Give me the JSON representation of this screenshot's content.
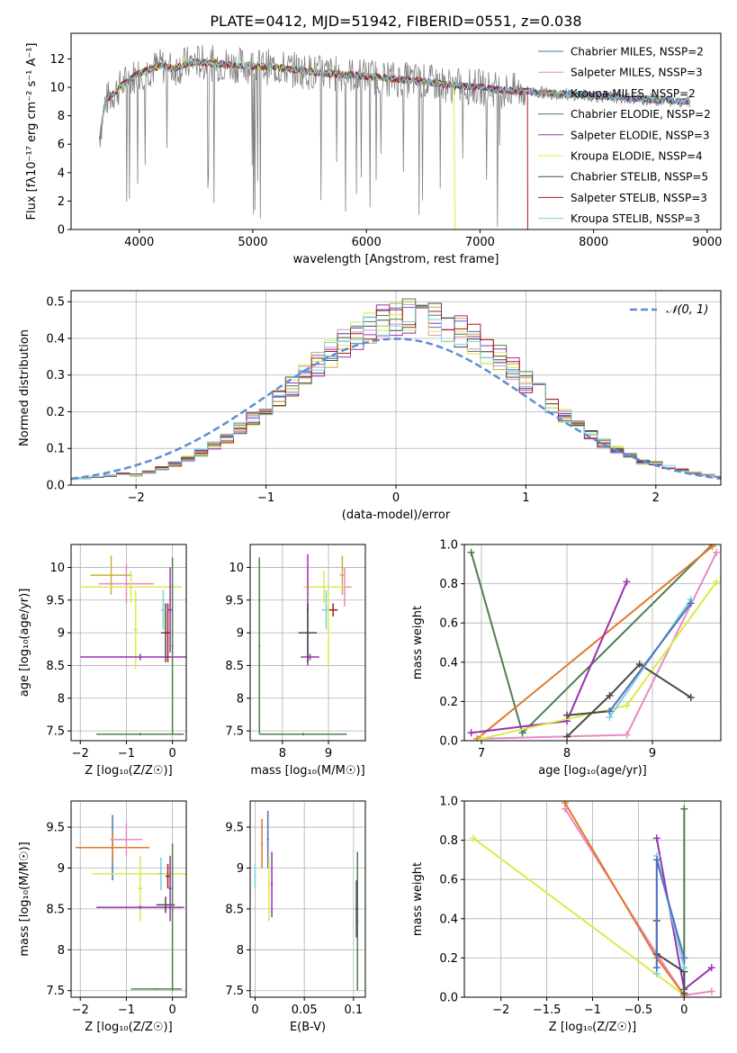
{
  "title": "PLATE=0412, MJD=51942, FIBERID=0551, z=0.038",
  "colors": {
    "chabrier_miles": "#4f6fc0",
    "salpeter_miles": "#e88ac4",
    "kroupa_miles": "#c8b03a",
    "chabrier_elodie": "#4f7f4f",
    "salpeter_elodie": "#9b2fb0",
    "kroupa_elodie": "#d8ec4a",
    "chabrier_stelib": "#4a4a4a",
    "salpeter_stelib": "#b01818",
    "kroupa_stelib": "#7ed0dc",
    "data": "#808080",
    "orange": "#e07a2a",
    "normal": "#5b8ed8"
  },
  "chart_data": [
    {
      "id": "spectrum",
      "type": "line",
      "xlabel": "wavelength [Angstrom, rest frame]",
      "ylabel": "Flux [fλ10⁻¹⁷ erg cm⁻² s⁻¹ A⁻¹]",
      "xlim": [
        3400,
        9120
      ],
      "ylim": [
        0,
        13.8
      ],
      "xticks": [
        4000,
        5000,
        6000,
        7000,
        8000,
        9000
      ],
      "yticks": [
        0,
        2,
        4,
        6,
        8,
        10,
        12
      ],
      "legend_position": "top-right",
      "legend": [
        "Chabrier MILES, NSSP=2",
        "Salpeter MILES, NSSP=3",
        "Kroupa MILES, NSSP=2",
        "Chabrier ELODIE, NSSP=2",
        "Salpeter ELODIE, NSSP=3",
        "Kroupa ELODIE, NSSP=4",
        "Chabrier STELIB, NSSP=5",
        "Salpeter STELIB, NSSP=3",
        "Kroupa STELIB, NSSP=3"
      ],
      "data_x": [
        3650,
        3700,
        3800,
        3900,
        4000,
        4100,
        4200,
        4300,
        4400,
        4500,
        4600,
        4800,
        5000,
        5200,
        5400,
        5600,
        5800,
        6000,
        6200,
        6400,
        6600,
        6800,
        7000,
        7200,
        7400,
        7600,
        7800,
        8000,
        8200,
        8400,
        8600,
        8800
      ],
      "data_y": [
        6.5,
        9.0,
        9.8,
        10.5,
        11.0,
        11.3,
        11.5,
        11.3,
        11.6,
        11.8,
        11.7,
        11.6,
        11.5,
        11.4,
        11.2,
        11.0,
        10.9,
        10.8,
        10.6,
        10.5,
        10.3,
        10.1,
        10.0,
        9.8,
        9.7,
        9.6,
        9.5,
        9.4,
        9.3,
        9.2,
        9.1,
        9.0
      ],
      "kroupa_elodie_cutoff": 6780,
      "salpeter_stelib_cutoff": 7420
    },
    {
      "id": "residuals",
      "type": "line",
      "xlabel": "(data-model)/error",
      "ylabel": "Normed distribution",
      "xlim": [
        -2.5,
        2.5
      ],
      "ylim": [
        0,
        0.53
      ],
      "xticks": [
        -2,
        -1,
        0,
        1,
        2
      ],
      "yticks": [
        0.0,
        0.1,
        0.2,
        0.3,
        0.4,
        0.5
      ],
      "legend": [
        "𝒩(0, 1)"
      ],
      "legend_position": "top-right"
    },
    {
      "id": "age_vs_Z",
      "type": "scatter",
      "xlabel": "Z [log₁₀(Z/Z☉)]",
      "ylabel": "age  [log₁₀(age/yr)]",
      "xlim": [
        -2.2,
        0.3
      ],
      "ylim": [
        7.35,
        10.35
      ],
      "xticks": [
        -2,
        -1,
        0
      ],
      "yticks": [
        7.5,
        8.0,
        8.5,
        9.0,
        9.5,
        10.0
      ],
      "points": [
        {
          "series": "kroupa_miles",
          "x": -1.33,
          "y": 9.88,
          "xerr": 0.45,
          "yerr": 0.3
        },
        {
          "series": "salpeter_miles",
          "x": -1.0,
          "y": 9.75,
          "xerr": 0.6,
          "yerr": 0.3
        },
        {
          "series": "kroupa_elodie",
          "x": -0.9,
          "y": 9.7,
          "xerr": 1.1,
          "yerr": 0.25
        },
        {
          "series": "kroupa_elodie",
          "x": -0.8,
          "y": 9.05,
          "xerr": 0.05,
          "yerr": 0.6
        },
        {
          "series": "salpeter_elodie",
          "x": -0.7,
          "y": 8.63,
          "xerr": 1.3,
          "yerr": 0.05
        },
        {
          "series": "chabrier_stelib",
          "x": -0.15,
          "y": 9.0,
          "xerr": 0.1,
          "yerr": 0.45
        },
        {
          "series": "kroupa_stelib",
          "x": -0.2,
          "y": 9.35,
          "xerr": 0.05,
          "yerr": 0.3
        },
        {
          "series": "salpeter_stelib",
          "x": -0.1,
          "y": 9.0,
          "xerr": 0.05,
          "yerr": 0.45
        },
        {
          "series": "salpeter_elodie",
          "x": -0.05,
          "y": 9.35,
          "xerr": 0.05,
          "yerr": 0.65
        },
        {
          "series": "chabrier_elodie",
          "x": -0.7,
          "y": 7.45,
          "xerr": 0.95,
          "yerr": 0.02
        },
        {
          "series": "chabrier_elodie",
          "x": 0.0,
          "y": 8.8,
          "xerr": 0.02,
          "yerr": 1.35
        }
      ]
    },
    {
      "id": "age_vs_mass",
      "type": "scatter",
      "xlabel": "mass [log₁₀(M/M☉)]",
      "ylabel": "",
      "xlim": [
        7.3,
        9.8
      ],
      "ylim": [
        7.35,
        10.35
      ],
      "xticks": [
        8,
        9
      ],
      "yticks": [
        7.5,
        8.0,
        8.5,
        9.0,
        9.5,
        10.0
      ],
      "points": [
        {
          "series": "kroupa_miles",
          "x": 9.3,
          "y": 9.88,
          "xerr": 0.05,
          "yerr": 0.3
        },
        {
          "series": "salpeter_miles",
          "x": 9.35,
          "y": 9.7,
          "xerr": 0.15,
          "yerr": 0.3
        },
        {
          "series": "kroupa_elodie",
          "x": 8.9,
          "y": 9.7,
          "xerr": 0.45,
          "yerr": 0.25
        },
        {
          "series": "salpeter_elodie",
          "x": 8.6,
          "y": 8.63,
          "xerr": 0.2,
          "yerr": 0.05
        },
        {
          "series": "salpeter_elodie",
          "x": 8.55,
          "y": 9.35,
          "xerr": 0.02,
          "yerr": 0.85
        },
        {
          "series": "chabrier_stelib",
          "x": 8.55,
          "y": 9.0,
          "xerr": 0.2,
          "yerr": 0.45
        },
        {
          "series": "kroupa_stelib",
          "x": 8.95,
          "y": 9.35,
          "xerr": 0.1,
          "yerr": 0.3
        },
        {
          "series": "salpeter_stelib",
          "x": 9.1,
          "y": 9.35,
          "xerr": 0.1,
          "yerr": 0.1
        },
        {
          "series": "kroupa_elodie",
          "x": 9.0,
          "y": 9.05,
          "xerr": 0.02,
          "yerr": 0.6
        },
        {
          "series": "chabrier_elodie",
          "x": 8.45,
          "y": 7.45,
          "xerr": 0.95,
          "yerr": 0.02
        },
        {
          "series": "chabrier_elodie",
          "x": 7.5,
          "y": 8.8,
          "xerr": 0.02,
          "yerr": 1.35
        }
      ]
    },
    {
      "id": "massweight_vs_age",
      "type": "line",
      "xlabel": "age  [log₁₀(age/yr)]",
      "ylabel": "mass weight",
      "xlim": [
        6.8,
        9.8
      ],
      "ylim": [
        0,
        1.0
      ],
      "xticks": [
        7,
        8,
        9
      ],
      "yticks": [
        0.0,
        0.2,
        0.4,
        0.6,
        0.8,
        1.0
      ],
      "series": [
        {
          "name": "chabrier_elodie",
          "x": [
            6.88,
            7.48,
            9.7
          ],
          "y": [
            0.96,
            0.04,
            1.0
          ]
        },
        {
          "name": "orange",
          "x": [
            6.95,
            9.7
          ],
          "y": [
            0.01,
            0.99
          ]
        },
        {
          "name": "salpeter_elodie",
          "x": [
            6.88,
            8.0,
            8.7
          ],
          "y": [
            0.04,
            0.1,
            0.81
          ]
        },
        {
          "name": "salpeter_miles",
          "x": [
            7.0,
            8.7,
            9.75
          ],
          "y": [
            0.01,
            0.03,
            0.96
          ]
        },
        {
          "name": "kroupa_elodie",
          "x": [
            7.0,
            8.7,
            9.75
          ],
          "y": [
            0.01,
            0.18,
            0.81
          ]
        },
        {
          "name": "chabrier_stelib",
          "x": [
            8.0,
            8.5,
            8.85,
            9.45
          ],
          "y": [
            0.02,
            0.23,
            0.39,
            0.22
          ]
        },
        {
          "name": "chabrier_stelib",
          "x": [
            8.0,
            8.5
          ],
          "y": [
            0.13,
            0.15
          ]
        },
        {
          "name": "kroupa_stelib",
          "x": [
            8.5,
            9.45
          ],
          "y": [
            0.12,
            0.72
          ]
        },
        {
          "name": "chabrier_miles",
          "x": [
            8.5,
            9.45
          ],
          "y": [
            0.15,
            0.7
          ]
        }
      ]
    },
    {
      "id": "mass_vs_Z",
      "type": "scatter",
      "xlabel": "Z [log₁₀(Z/Z☉)]",
      "ylabel": "mass [log₁₀(M/M☉)]",
      "xlim": [
        -2.2,
        0.3
      ],
      "ylim": [
        7.42,
        9.82
      ],
      "xticks": [
        -2,
        -1,
        0
      ],
      "yticks": [
        7.5,
        8.0,
        8.5,
        9.0,
        9.5
      ],
      "points": [
        {
          "series": "chabrier_miles",
          "x": -1.3,
          "y": 9.25,
          "xerr": 0.05,
          "yerr": 0.4
        },
        {
          "series": "orange",
          "x": -1.3,
          "y": 9.25,
          "xerr": 0.8,
          "yerr": 0.18
        },
        {
          "series": "salpeter_miles",
          "x": -1.0,
          "y": 9.35,
          "xerr": 0.35,
          "yerr": 0.2
        },
        {
          "series": "kroupa_elodie",
          "x": -0.7,
          "y": 8.93,
          "xerr": 1.05,
          "yerr": 0.1
        },
        {
          "series": "kroupa_elodie",
          "x": -0.7,
          "y": 8.75,
          "xerr": 0.05,
          "yerr": 0.4
        },
        {
          "series": "salpeter_elodie",
          "x": -0.7,
          "y": 8.52,
          "xerr": 0.95,
          "yerr": 0.02
        },
        {
          "series": "chabrier_stelib",
          "x": -0.15,
          "y": 8.55,
          "xerr": 0.2,
          "yerr": 0.1
        },
        {
          "series": "salpeter_stelib",
          "x": -0.1,
          "y": 8.9,
          "xerr": 0.05,
          "yerr": 0.15
        },
        {
          "series": "kroupa_stelib",
          "x": -0.25,
          "y": 8.93,
          "xerr": 0.05,
          "yerr": 0.2
        },
        {
          "series": "salpeter_elodie",
          "x": -0.05,
          "y": 8.75,
          "xerr": 0.03,
          "yerr": 0.4
        },
        {
          "series": "chabrier_elodie",
          "x": -0.35,
          "y": 7.52,
          "xerr": 0.55,
          "yerr": 0.01
        },
        {
          "series": "chabrier_elodie",
          "x": 0.0,
          "y": 8.4,
          "xerr": 0.01,
          "yerr": 0.9
        }
      ]
    },
    {
      "id": "mass_vs_ebv",
      "type": "scatter",
      "xlabel": "E(B-V)",
      "ylabel": "",
      "xlim": [
        -0.005,
        0.112
      ],
      "ylim": [
        7.42,
        9.82
      ],
      "xticks": [
        0.0,
        0.05,
        0.1
      ],
      "yticks": [
        7.5,
        8.0,
        8.5,
        9.0,
        9.5
      ],
      "points": [
        {
          "series": "kroupa_stelib",
          "x": 0.0,
          "y": 8.9,
          "xerr": 0.001,
          "yerr": 0.15
        },
        {
          "series": "orange",
          "x": 0.007,
          "y": 9.3,
          "xerr": 0.001,
          "yerr": 0.3
        },
        {
          "series": "chabrier_miles",
          "x": 0.013,
          "y": 9.35,
          "xerr": 0.001,
          "yerr": 0.35
        },
        {
          "series": "kroupa_elodie",
          "x": 0.014,
          "y": 8.75,
          "xerr": 0.001,
          "yerr": 0.4
        },
        {
          "series": "salpeter_elodie",
          "x": 0.017,
          "y": 8.8,
          "xerr": 0.001,
          "yerr": 0.4
        },
        {
          "series": "chabrier_elodie",
          "x": 0.104,
          "y": 8.35,
          "xerr": 0.001,
          "yerr": 0.85
        },
        {
          "series": "chabrier_stelib",
          "x": 0.103,
          "y": 8.5,
          "xerr": 0.001,
          "yerr": 0.35
        }
      ]
    },
    {
      "id": "massweight_vs_Z",
      "type": "line",
      "xlabel": "Z [log₁₀(Z/Z☉)]",
      "ylabel": "mass weight",
      "xlim": [
        -2.4,
        0.4
      ],
      "ylim": [
        0,
        1.0
      ],
      "xticks": [
        -2.0,
        -1.5,
        -1.0,
        -0.5,
        0.0
      ],
      "yticks": [
        0.0,
        0.2,
        0.4,
        0.6,
        0.8,
        1.0
      ],
      "series": [
        {
          "name": "kroupa_elodie",
          "x": [
            -2.3,
            0.0
          ],
          "y": [
            0.81,
            0.01
          ]
        },
        {
          "name": "salpeter_miles",
          "x": [
            -1.3,
            -0.3,
            0.0,
            0.3
          ],
          "y": [
            0.96,
            0.22,
            0.01,
            0.03
          ]
        },
        {
          "name": "orange",
          "x": [
            -1.3,
            -0.3,
            0.0
          ],
          "y": [
            0.99,
            0.2,
            0.01
          ]
        },
        {
          "name": "salpeter_elodie",
          "x": [
            -0.3,
            0.0,
            0.3
          ],
          "y": [
            0.81,
            0.04,
            0.15
          ]
        },
        {
          "name": "chabrier_elodie",
          "x": [
            0.0,
            0.0
          ],
          "y": [
            0.04,
            0.96
          ]
        },
        {
          "name": "chabrier_stelib",
          "x": [
            -0.3,
            -0.3,
            0.0,
            0.0
          ],
          "y": [
            0.39,
            0.22,
            0.13,
            0.02
          ]
        },
        {
          "name": "kroupa_stelib",
          "x": [
            -0.3,
            -0.3,
            0.0
          ],
          "y": [
            0.12,
            0.72,
            0.15
          ]
        },
        {
          "name": "chabrier_miles",
          "x": [
            -0.3,
            -0.3,
            0.0
          ],
          "y": [
            0.15,
            0.7,
            0.2
          ]
        }
      ]
    }
  ]
}
